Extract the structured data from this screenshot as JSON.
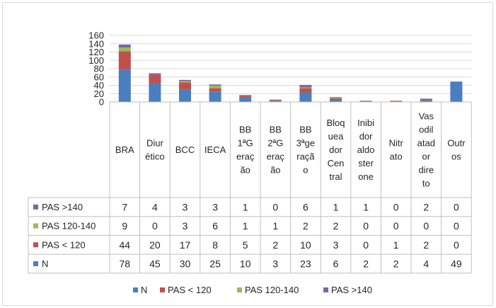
{
  "chart_data": {
    "type": "bar",
    "stacked": true,
    "with_data_table": true,
    "categories": [
      [
        "BRA"
      ],
      [
        "Diur",
        "ético"
      ],
      [
        "BCC"
      ],
      [
        "IECA"
      ],
      [
        "BB",
        "1ªG",
        "eraç",
        "ão"
      ],
      [
        "BB",
        "2ªG",
        "eraç",
        "ão"
      ],
      [
        "BB",
        "3ªge",
        "raçã",
        "o"
      ],
      [
        "Bloq",
        "uea",
        "dor",
        "Cen",
        "tral"
      ],
      [
        "Inibi",
        "dor",
        "aldo",
        "ster",
        "one"
      ],
      [
        "Nitr",
        "ato"
      ],
      [
        "Vas",
        "odil",
        "atad",
        "or",
        "dire",
        "to"
      ],
      [
        "Outr",
        "os"
      ]
    ],
    "series": [
      {
        "name": "N",
        "color": "#4a7ebf",
        "values": [
          78,
          45,
          30,
          25,
          10,
          3,
          23,
          6,
          2,
          2,
          4,
          49
        ]
      },
      {
        "name": "PAS < 120",
        "color": "#c0504d",
        "values": [
          44,
          20,
          17,
          8,
          5,
          2,
          10,
          3,
          0,
          1,
          2,
          0
        ]
      },
      {
        "name": "PAS 120-140",
        "color": "#9bbb59",
        "values": [
          9,
          0,
          3,
          6,
          1,
          1,
          2,
          2,
          0,
          0,
          0,
          0
        ]
      },
      {
        "name": "PAS >140",
        "color": "#8064a2",
        "values": [
          7,
          4,
          3,
          3,
          1,
          0,
          6,
          1,
          1,
          0,
          2,
          0
        ]
      }
    ],
    "table_row_order": [
      "PAS >140",
      "PAS 120-140",
      "PAS < 120",
      "N"
    ],
    "yticks": [
      0,
      20,
      40,
      60,
      80,
      100,
      120,
      140,
      160
    ],
    "ylim": [
      0,
      160
    ],
    "grid": true,
    "legend_position": "bottom",
    "title": "",
    "xlabel": "",
    "ylabel": ""
  }
}
